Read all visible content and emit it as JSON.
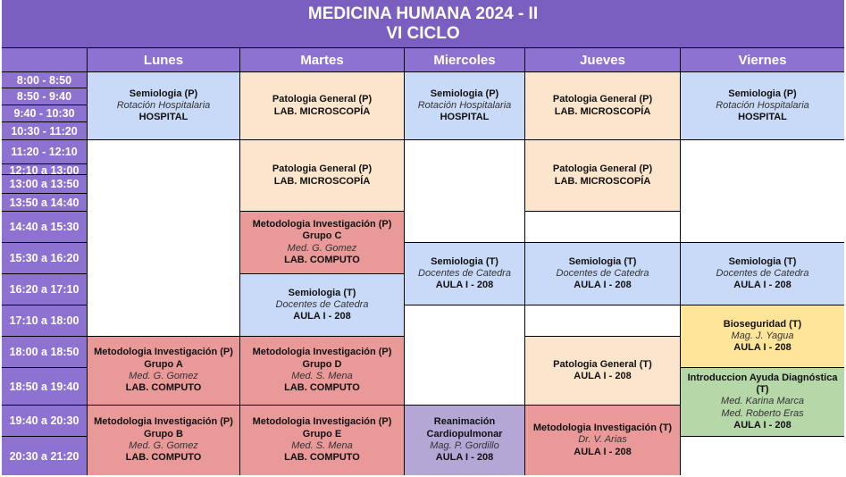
{
  "header": {
    "title": "MEDICINA HUMANA 2024 - II",
    "subtitle": "VI CICLO"
  },
  "days": [
    "Lunes",
    "Martes",
    "Miercoles",
    "Jueves",
    "Viernes"
  ],
  "times": [
    "8:00 - 8:50",
    "8:50 - 9:40",
    "9:40 - 10:30",
    "10:30 - 11:20",
    "11:20 - 12:10",
    "12:10 a 13:00",
    "13:00 a 13:50",
    "13:50 a 14:40",
    "14:40 a 15:30",
    "15:30 a 16:20",
    "16:20 a 17:10",
    "17:10 a 18:00",
    "18:00 a 18:50",
    "18:50 a 19:40",
    "19:40 a 20:30",
    "20:30 a 21:20"
  ],
  "colors": {
    "header": "#7a5ec0",
    "day_header": "#8d72d2",
    "practice_seminar": "#c9daf8",
    "pathology": "#fce5cd",
    "methodology": "#ea9999",
    "biosafety": "#ffe599",
    "diagnostic": "#b6d7a8",
    "cpr": "#b4a7d6"
  },
  "events": {
    "lun_1": {
      "lines": [
        "Semiologia (P)",
        "Rotación Hospitalaria",
        "HOSPITAL"
      ]
    },
    "lun_2": {
      "lines": [
        "Metodologia Investigación (P)",
        "Grupo A",
        "Med. G. Gomez",
        "LAB. COMPUTO"
      ]
    },
    "lun_3": {
      "lines": [
        "Metodologia Investigación (P)",
        "Grupo B",
        "Med. G. Gomez",
        "LAB. COMPUTO"
      ]
    },
    "mar_1": {
      "lines": [
        "Patologia General (P)",
        "LAB. MICROSCOPÍA"
      ]
    },
    "mar_2": {
      "lines": [
        "Patologia General (P)",
        "LAB. MICROSCOPÍA"
      ]
    },
    "mar_3": {
      "lines": [
        "Metodologia Investigación (P)",
        "Grupo C",
        "Med. G. Gomez",
        "LAB. COMPUTO"
      ]
    },
    "mar_4": {
      "lines": [
        "Semiologia (T)",
        "Docentes de Catedra",
        "AULA I - 208"
      ]
    },
    "mar_5": {
      "lines": [
        "Metodologia Investigación (P)",
        "Grupo D",
        "Med. S. Mena",
        "LAB. COMPUTO"
      ]
    },
    "mar_6": {
      "lines": [
        "Metodologia Investigación (P)",
        "Grupo E",
        "Med. S. Mena",
        "LAB. COMPUTO"
      ]
    },
    "mie_1": {
      "lines": [
        "Semiologia (P)",
        "Rotación Hospitalaria",
        "HOSPITAL"
      ]
    },
    "mie_2": {
      "lines": [
        "Semiologia (T)",
        "Docentes de Catedra",
        "AULA I - 208"
      ]
    },
    "mie_3": {
      "lines": [
        "Reanimación Cardiopulmonar",
        "Mag. P. Gordillo",
        "AULA I - 208"
      ]
    },
    "jue_1": {
      "lines": [
        "Patologia General (P)",
        "LAB. MICROSCOPÍA"
      ]
    },
    "jue_2": {
      "lines": [
        "Patologia General (P)",
        "LAB. MICROSCOPÍA"
      ]
    },
    "jue_3": {
      "lines": [
        "Semiologia (T)",
        "Docentes de Catedra",
        "AULA I - 208"
      ]
    },
    "jue_4": {
      "lines": [
        "Patologia General (T)",
        "AULA I - 208"
      ]
    },
    "jue_5": {
      "lines": [
        "Metodologia Investigación (T)",
        "Dr. V. Arias",
        "AULA I - 208"
      ]
    },
    "vie_1": {
      "lines": [
        "Semiologia (P)",
        "Rotación Hospitalaria",
        "HOSPITAL"
      ]
    },
    "vie_2": {
      "lines": [
        "Semiologia (T)",
        "Docentes de Catedra",
        "AULA I - 208"
      ]
    },
    "vie_3": {
      "lines": [
        "Bioseguridad (T)",
        "Mag. J. Yagua",
        "AULA I - 208"
      ]
    },
    "vie_4": {
      "lines": [
        "Introduccion Ayuda Diagnóstica (T)",
        "Med. Karina Marca",
        "Med. Roberto Eras",
        "AULA I - 208"
      ]
    }
  }
}
